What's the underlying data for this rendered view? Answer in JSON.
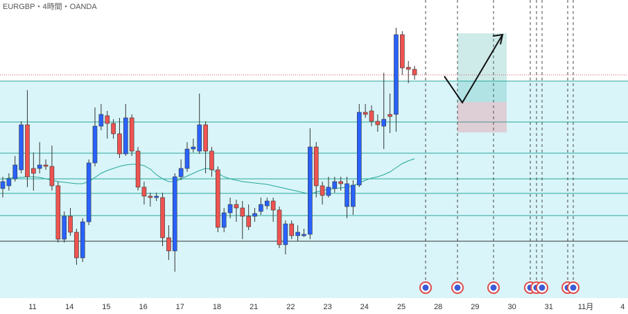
{
  "chart_data": {
    "type": "candlestick",
    "title": "EURGBP・4時間・OANDA",
    "categories": [
      "11",
      "14",
      "15",
      "16",
      "17",
      "18",
      "21",
      "22",
      "23",
      "24",
      "25",
      "28",
      "29",
      "30",
      "31",
      "11月",
      "4"
    ],
    "open": [
      181,
      185,
      195,
      208,
      273,
      210,
      210,
      215,
      213,
      185,
      108,
      141,
      118,
      81,
      133,
      218,
      271,
      286,
      275,
      260,
      231,
      283,
      235,
      183,
      170,
      168,
      168,
      110,
      91,
      198,
      210,
      238,
      235,
      273,
      235,
      208,
      125,
      146,
      158,
      153,
      141,
      141,
      148,
      156,
      163,
      150,
      100,
      130,
      113,
      113,
      115,
      241,
      185,
      171,
      181,
      191,
      155,
      155,
      186,
      291,
      293,
      278,
      271,
      288,
      288,
      403,
      356,
      353
    ],
    "high": [
      198,
      203,
      228,
      278,
      323,
      233,
      248,
      223,
      243,
      191,
      148,
      153,
      123,
      138,
      223,
      298,
      303,
      293,
      281,
      283,
      303,
      288,
      241,
      191,
      175,
      175,
      175,
      128,
      203,
      223,
      248,
      253,
      318,
      278,
      241,
      213,
      153,
      168,
      165,
      163,
      158,
      153,
      168,
      168,
      168,
      155,
      135,
      135,
      128,
      123,
      268,
      248,
      191,
      198,
      198,
      198,
      198,
      193,
      303,
      303,
      301,
      288,
      348,
      318,
      413,
      408,
      365,
      358
    ],
    "low": [
      168,
      178,
      191,
      203,
      183,
      178,
      203,
      208,
      178,
      103,
      103,
      113,
      71,
      75,
      128,
      213,
      265,
      253,
      253,
      225,
      228,
      228,
      178,
      158,
      155,
      163,
      98,
      78,
      61,
      193,
      205,
      233,
      231,
      203,
      198,
      118,
      118,
      138,
      133,
      108,
      121,
      133,
      143,
      151,
      133,
      95,
      86,
      108,
      105,
      111,
      108,
      168,
      158,
      168,
      175,
      178,
      138,
      143,
      183,
      283,
      271,
      263,
      238,
      261,
      263,
      345,
      333,
      338
    ],
    "close": [
      191,
      195,
      215,
      273,
      198,
      203,
      215,
      213,
      185,
      108,
      141,
      118,
      81,
      133,
      218,
      271,
      288,
      275,
      260,
      231,
      283,
      235,
      183,
      170,
      168,
      170,
      110,
      91,
      198,
      210,
      238,
      241,
      273,
      235,
      208,
      125,
      146,
      158,
      153,
      141,
      126,
      145,
      158,
      163,
      150,
      100,
      130,
      113,
      118,
      115,
      241,
      185,
      171,
      183,
      191,
      188,
      188,
      186,
      291,
      288,
      278,
      273,
      281,
      285,
      403,
      355,
      353,
      345
    ],
    "up_color": "#2962ff",
    "down_color": "#ef5350",
    "ma_values": [
      195,
      196,
      197,
      197,
      198,
      198,
      197,
      195,
      193,
      191,
      190,
      189,
      188,
      188,
      191,
      197,
      203,
      207,
      210,
      213,
      215,
      216,
      216,
      214,
      209,
      201,
      195,
      191,
      191,
      195,
      199,
      203,
      207,
      210,
      209,
      203,
      198,
      195,
      193,
      191,
      190,
      189,
      188,
      187,
      185,
      183,
      181,
      179,
      177,
      175,
      173,
      176,
      178,
      180,
      181,
      182,
      183,
      185,
      189,
      193,
      196,
      198,
      201,
      205,
      211,
      217,
      221,
      224
    ],
    "ma_color": "#26a69a",
    "zone": [
      23,
      336
    ],
    "levels": [
      336,
      277,
      232,
      195,
      174,
      142,
      105
    ],
    "dotted_level": 345,
    "ylim": [
      0,
      453
    ]
  }
}
